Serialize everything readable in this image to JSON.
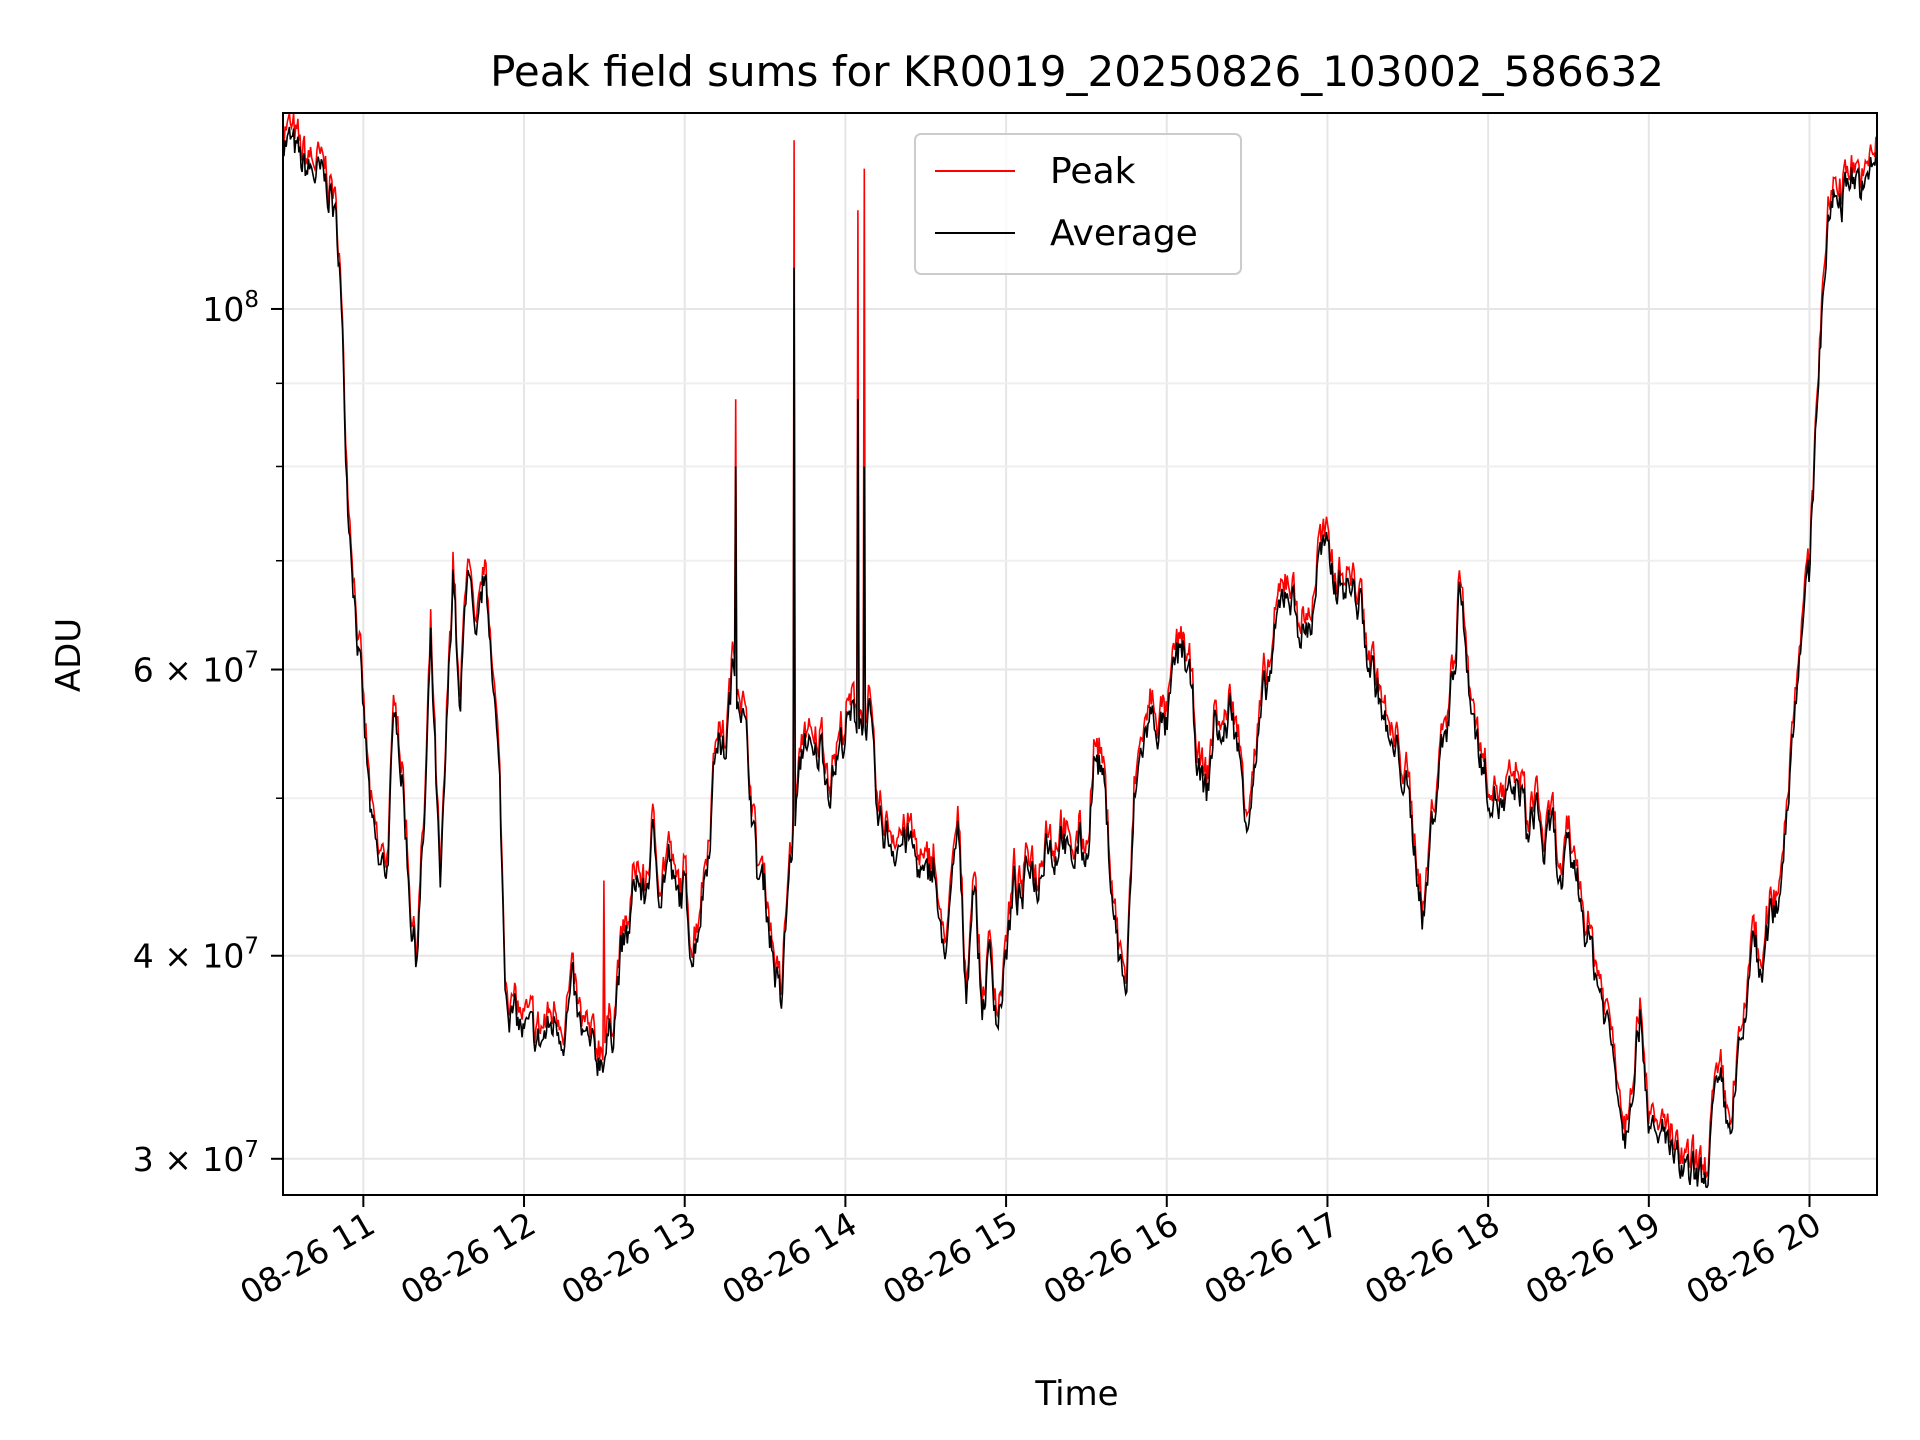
{
  "chart_data": {
    "type": "line",
    "title": "Peak field sums for KR0019_20250826_103002_586632",
    "xlabel": "Time",
    "ylabel": "ADU",
    "x_unit": "hours on 2025-08-26",
    "xlim": [
      10.5,
      20.42
    ],
    "ylim": [
      28500000,
      132000000
    ],
    "yscale": "log",
    "grid": true,
    "legend_position": "top-center",
    "x_ticks": [
      {
        "value": 11,
        "label": "08-26 11"
      },
      {
        "value": 12,
        "label": "08-26 12"
      },
      {
        "value": 13,
        "label": "08-26 13"
      },
      {
        "value": 14,
        "label": "08-26 14"
      },
      {
        "value": 15,
        "label": "08-26 15"
      },
      {
        "value": 16,
        "label": "08-26 16"
      },
      {
        "value": 17,
        "label": "08-26 17"
      },
      {
        "value": 18,
        "label": "08-26 18"
      },
      {
        "value": 19,
        "label": "08-26 19"
      },
      {
        "value": 20,
        "label": "08-26 20"
      }
    ],
    "y_major_ticks": [
      {
        "value": 100000000,
        "mant": "10",
        "exp": "8"
      },
      {
        "value": 60000000,
        "mant": "6 × 10",
        "exp": "7"
      },
      {
        "value": 40000000,
        "mant": "4 × 10",
        "exp": "7"
      },
      {
        "value": 30000000,
        "mant": "3 × 10",
        "exp": "7"
      }
    ],
    "y_minor_ticks": [
      50000000,
      70000000,
      80000000,
      90000000
    ],
    "series": [
      {
        "name": "Peak",
        "color": "#ff0000",
        "spikes": [
          [
            10.54,
            132000000
          ],
          [
            12.5,
            44500000
          ],
          [
            13.32,
            88000000
          ],
          [
            13.68,
            127000000
          ],
          [
            14.08,
            115000000
          ],
          [
            14.12,
            122000000
          ]
        ]
      },
      {
        "name": "Average",
        "color": "#000000",
        "spikes": [
          [
            13.32,
            80000000
          ],
          [
            13.68,
            106000000
          ],
          [
            14.08,
            88000000
          ],
          [
            14.12,
            80000000
          ]
        ]
      }
    ],
    "base_curve": [
      [
        10.5,
        128000000
      ],
      [
        10.55,
        126000000
      ],
      [
        10.62,
        122000000
      ],
      [
        10.7,
        121000000
      ],
      [
        10.8,
        118000000
      ],
      [
        10.85,
        108000000
      ],
      [
        10.9,
        78000000
      ],
      [
        10.95,
        66000000
      ],
      [
        11.0,
        56000000
      ],
      [
        11.05,
        48000000
      ],
      [
        11.1,
        45000000
      ],
      [
        11.15,
        45500000
      ],
      [
        11.2,
        58000000
      ],
      [
        11.25,
        50000000
      ],
      [
        11.3,
        42000000
      ],
      [
        11.33,
        40000000
      ],
      [
        11.38,
        48000000
      ],
      [
        11.42,
        62000000
      ],
      [
        11.48,
        43000000
      ],
      [
        11.52,
        55000000
      ],
      [
        11.56,
        70000000
      ],
      [
        11.6,
        55000000
      ],
      [
        11.65,
        71000000
      ],
      [
        11.7,
        60000000
      ],
      [
        11.75,
        68000000
      ],
      [
        11.8,
        62000000
      ],
      [
        11.85,
        50000000
      ],
      [
        11.88,
        39000000
      ],
      [
        11.92,
        37000000
      ],
      [
        12.0,
        35800000
      ],
      [
        12.1,
        35300000
      ],
      [
        12.2,
        36500000
      ],
      [
        12.25,
        36000000
      ],
      [
        12.3,
        38000000
      ],
      [
        12.35,
        35800000
      ],
      [
        12.4,
        35000000
      ],
      [
        12.45,
        34500000
      ],
      [
        12.5,
        35000000
      ],
      [
        12.55,
        36000000
      ],
      [
        12.6,
        40000000
      ],
      [
        12.65,
        41000000
      ],
      [
        12.7,
        45000000
      ],
      [
        12.75,
        43000000
      ],
      [
        12.8,
        47000000
      ],
      [
        12.85,
        44000000
      ],
      [
        12.9,
        46000000
      ],
      [
        12.95,
        43000000
      ],
      [
        13.0,
        44000000
      ],
      [
        13.05,
        40000000
      ],
      [
        13.1,
        43000000
      ],
      [
        13.15,
        47000000
      ],
      [
        13.2,
        55000000
      ],
      [
        13.25,
        53000000
      ],
      [
        13.3,
        60000000
      ],
      [
        13.35,
        58000000
      ],
      [
        13.4,
        52000000
      ],
      [
        13.45,
        45000000
      ],
      [
        13.5,
        44000000
      ],
      [
        13.55,
        40000000
      ],
      [
        13.6,
        37000000
      ],
      [
        13.65,
        45000000
      ],
      [
        13.7,
        50000000
      ],
      [
        13.75,
        55000000
      ],
      [
        13.8,
        52000000
      ],
      [
        13.85,
        54000000
      ],
      [
        13.9,
        51000000
      ],
      [
        14.0,
        55000000
      ],
      [
        14.05,
        56000000
      ],
      [
        14.15,
        56000000
      ],
      [
        14.2,
        48000000
      ],
      [
        14.3,
        47000000
      ],
      [
        14.4,
        47000000
      ],
      [
        14.5,
        44000000
      ],
      [
        14.55,
        46000000
      ],
      [
        14.6,
        40000000
      ],
      [
        14.65,
        42000000
      ],
      [
        14.7,
        48000000
      ],
      [
        14.75,
        38000000
      ],
      [
        14.8,
        45000000
      ],
      [
        14.85,
        37000000
      ],
      [
        14.9,
        40000000
      ],
      [
        14.95,
        36500000
      ],
      [
        15.0,
        40000000
      ],
      [
        15.05,
        44000000
      ],
      [
        15.1,
        43000000
      ],
      [
        15.15,
        46000000
      ],
      [
        15.2,
        44000000
      ],
      [
        15.25,
        48000000
      ],
      [
        15.3,
        46000000
      ],
      [
        15.35,
        48000000
      ],
      [
        15.4,
        45000000
      ],
      [
        15.45,
        47000000
      ],
      [
        15.5,
        46000000
      ],
      [
        15.55,
        53000000
      ],
      [
        15.6,
        52000000
      ],
      [
        15.65,
        45000000
      ],
      [
        15.7,
        40000000
      ],
      [
        15.75,
        38000000
      ],
      [
        15.8,
        50000000
      ],
      [
        15.85,
        54000000
      ],
      [
        15.9,
        56000000
      ],
      [
        16.0,
        55000000
      ],
      [
        16.05,
        60000000
      ],
      [
        16.1,
        62000000
      ],
      [
        16.15,
        58000000
      ],
      [
        16.2,
        52000000
      ],
      [
        16.25,
        50000000
      ],
      [
        16.3,
        56000000
      ],
      [
        16.35,
        54000000
      ],
      [
        16.4,
        57000000
      ],
      [
        16.45,
        53000000
      ],
      [
        16.5,
        49000000
      ],
      [
        16.55,
        52000000
      ],
      [
        16.6,
        57000000
      ],
      [
        16.65,
        60000000
      ],
      [
        16.7,
        65000000
      ],
      [
        16.75,
        68000000
      ],
      [
        16.8,
        65000000
      ],
      [
        16.85,
        63000000
      ],
      [
        16.9,
        64000000
      ],
      [
        16.95,
        71000000
      ],
      [
        17.0,
        70000000
      ],
      [
        17.05,
        68000000
      ],
      [
        17.1,
        68000000
      ],
      [
        17.15,
        67000000
      ],
      [
        17.2,
        66000000
      ],
      [
        17.25,
        61000000
      ],
      [
        17.3,
        59000000
      ],
      [
        17.35,
        56000000
      ],
      [
        17.4,
        53000000
      ],
      [
        17.45,
        53000000
      ],
      [
        17.5,
        50000000
      ],
      [
        17.55,
        46000000
      ],
      [
        17.6,
        42000000
      ],
      [
        17.65,
        48000000
      ],
      [
        17.7,
        53000000
      ],
      [
        17.75,
        56000000
      ],
      [
        17.8,
        62000000
      ],
      [
        17.82,
        69000000
      ],
      [
        17.85,
        63000000
      ],
      [
        17.9,
        57000000
      ],
      [
        17.95,
        53000000
      ],
      [
        18.0,
        51000000
      ],
      [
        18.05,
        50000000
      ],
      [
        18.1,
        49000000
      ],
      [
        18.15,
        50000000
      ],
      [
        18.2,
        51000000
      ],
      [
        18.25,
        47000000
      ],
      [
        18.3,
        50000000
      ],
      [
        18.35,
        46000000
      ],
      [
        18.4,
        48000000
      ],
      [
        18.45,
        44000000
      ],
      [
        18.5,
        46000000
      ],
      [
        18.55,
        45000000
      ],
      [
        18.6,
        42000000
      ],
      [
        18.65,
        40000000
      ],
      [
        18.7,
        38000000
      ],
      [
        18.75,
        36000000
      ],
      [
        18.8,
        34000000
      ],
      [
        18.85,
        31000000
      ],
      [
        18.9,
        34000000
      ],
      [
        18.95,
        37000000
      ],
      [
        19.0,
        32000000
      ],
      [
        19.05,
        30000000
      ],
      [
        19.1,
        31500000
      ],
      [
        19.15,
        29800000
      ],
      [
        19.2,
        29500000
      ],
      [
        19.25,
        29000000
      ],
      [
        19.3,
        29200000
      ],
      [
        19.35,
        28800000
      ],
      [
        19.4,
        32000000
      ],
      [
        19.45,
        33000000
      ],
      [
        19.5,
        31000000
      ],
      [
        19.55,
        34000000
      ],
      [
        19.6,
        36000000
      ],
      [
        19.65,
        42000000
      ],
      [
        19.7,
        38000000
      ],
      [
        19.75,
        42000000
      ],
      [
        19.8,
        43000000
      ],
      [
        19.85,
        48000000
      ],
      [
        19.9,
        56000000
      ],
      [
        19.95,
        64000000
      ],
      [
        20.0,
        68000000
      ],
      [
        20.05,
        90000000
      ],
      [
        20.1,
        108000000
      ],
      [
        20.15,
        118000000
      ],
      [
        20.2,
        117000000
      ],
      [
        20.25,
        122000000
      ],
      [
        20.3,
        120000000
      ],
      [
        20.35,
        117000000
      ],
      [
        20.42,
        126000000
      ]
    ]
  }
}
